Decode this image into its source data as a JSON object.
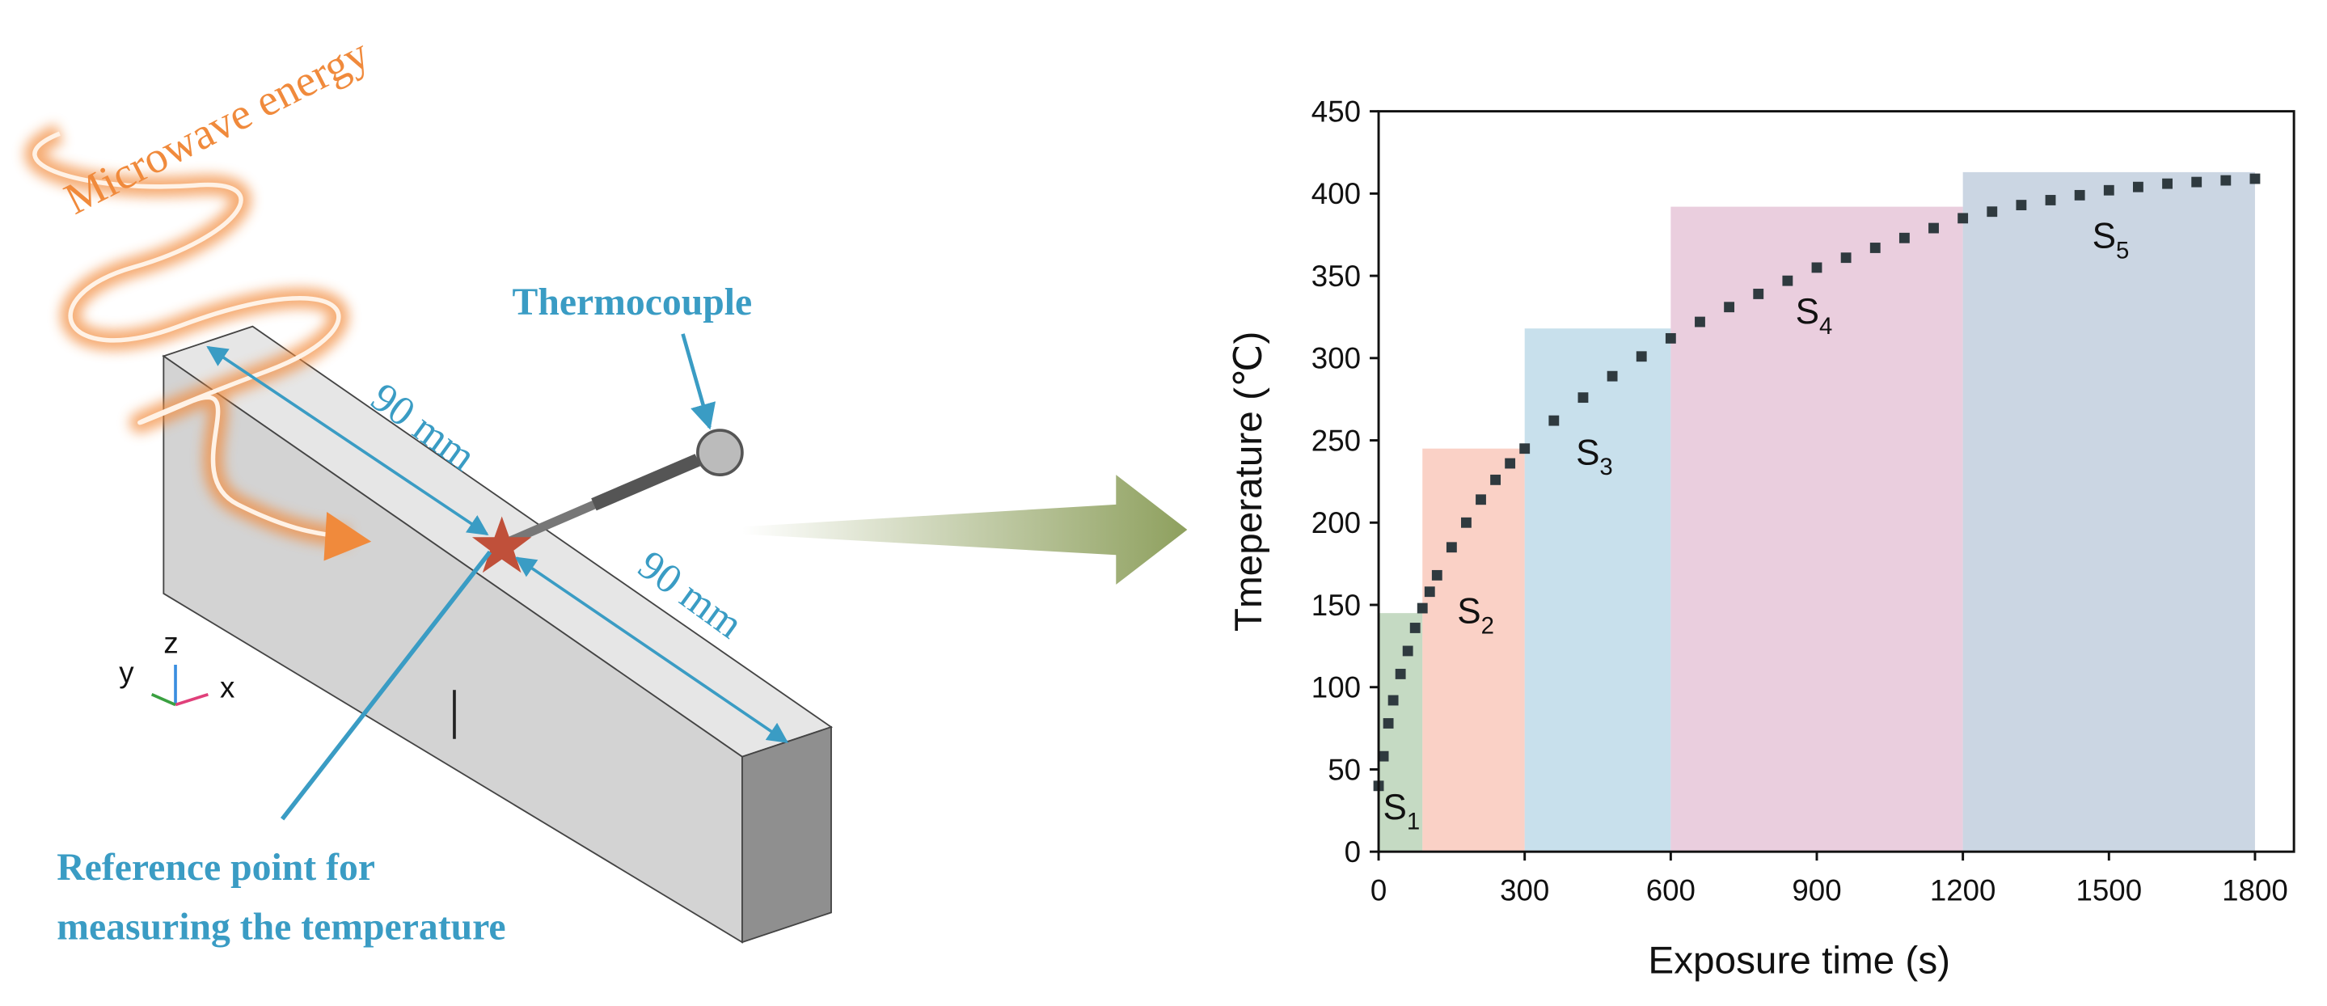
{
  "diagram": {
    "microwave": "Microwave energy",
    "thermocouple": "Thermocouple",
    "length_left": "90 mm",
    "length_right": "90 mm",
    "reference_line1": "Reference point for",
    "reference_line2": "measuring the temperature",
    "axis_x": "x",
    "axis_y": "y",
    "axis_z": "z"
  },
  "chart_data": {
    "type": "scatter",
    "xlabel": "Exposure time (s)",
    "ylabel": "Tmeperature (℃)",
    "xlim": [
      0,
      1880
    ],
    "ylim": [
      0,
      450
    ],
    "xticks": [
      0,
      300,
      600,
      900,
      1200,
      1500,
      1800
    ],
    "yticks": [
      0,
      50,
      100,
      150,
      200,
      250,
      300,
      350,
      400,
      450
    ],
    "color": "#2f3a3f",
    "x": [
      0,
      10,
      20,
      30,
      45,
      60,
      75,
      90,
      105,
      120,
      150,
      180,
      210,
      240,
      270,
      300,
      360,
      420,
      480,
      540,
      600,
      660,
      720,
      780,
      840,
      900,
      960,
      1020,
      1080,
      1140,
      1200,
      1260,
      1320,
      1380,
      1440,
      1500,
      1560,
      1620,
      1680,
      1740,
      1800
    ],
    "values": [
      40,
      58,
      78,
      92,
      108,
      122,
      136,
      148,
      158,
      168,
      185,
      200,
      214,
      226,
      236,
      245,
      262,
      276,
      289,
      301,
      312,
      322,
      331,
      339,
      347,
      355,
      361,
      367,
      373,
      379,
      385,
      389,
      393,
      396,
      399,
      402,
      404,
      406,
      407,
      408,
      409
    ],
    "regions": [
      {
        "name": "S",
        "sub": "1",
        "xlim": [
          0,
          90
        ],
        "top": 145,
        "color": "#9fc29b"
      },
      {
        "name": "S",
        "sub": "2",
        "xlim": [
          90,
          300
        ],
        "top": 245,
        "color": "#f7b3a0"
      },
      {
        "name": "S",
        "sub": "3",
        "xlim": [
          300,
          600
        ],
        "top": 318,
        "color": "#a4cbe0"
      },
      {
        "name": "S",
        "sub": "4",
        "xlim": [
          600,
          1200
        ],
        "top": 392,
        "color": "#dcaec8"
      },
      {
        "name": "S",
        "sub": "5",
        "xlim": [
          1200,
          1800
        ],
        "top": 413,
        "color": "#a9bbd0"
      }
    ]
  }
}
